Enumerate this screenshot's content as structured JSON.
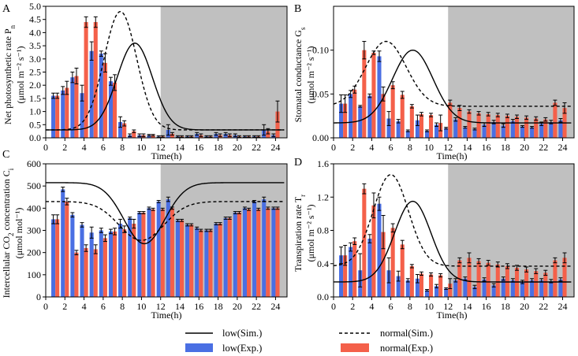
{
  "colors": {
    "low": "#4a6fe3",
    "normal": "#f4604a",
    "night": "#c0c0c0",
    "line": "#000000",
    "err": "#000000"
  },
  "x_ticks": [
    0,
    2,
    4,
    6,
    8,
    10,
    12,
    14,
    16,
    18,
    20,
    22,
    24
  ],
  "legend": {
    "low_sim": "low(Sim.)",
    "normal_sim": "normal(Sim.)",
    "low_exp": "low(Exp.)",
    "normal_exp": "normal(Exp.)"
  },
  "chart_data": [
    {
      "type": "bar",
      "panel_label": "A",
      "ylabel_line1": "Net photosynthetic rate P",
      "ylabel_sub": "n",
      "ylabel_line2": "(μmol m⁻² s⁻¹)",
      "xlabel": "Time(h)",
      "xlim": [
        0,
        25.2
      ],
      "ylim": [
        0,
        5.0
      ],
      "yticks": [
        0,
        0.5,
        1.0,
        1.5,
        2.0,
        2.5,
        3.0,
        3.5,
        4.0,
        4.5,
        5.0
      ],
      "ytick_labels": [
        "0.0",
        "0.5",
        "1.0",
        "1.5",
        "2.0",
        "2.5",
        "3.0",
        "3.5",
        "4.0",
        "4.5",
        "5.0"
      ],
      "night_start": 12,
      "x": [
        1,
        2,
        3,
        4,
        5,
        6,
        7,
        8,
        9,
        10,
        11,
        12,
        13,
        14,
        15,
        16,
        17,
        18,
        19,
        20,
        21,
        22,
        23,
        24
      ],
      "series": [
        {
          "name": "low(Exp.)",
          "values": [
            1.6,
            1.8,
            2.3,
            1.7,
            3.3,
            3.2,
            2.15,
            0.6,
            0.1,
            0.1,
            0.1,
            0.05,
            0.3,
            0.05,
            0.05,
            0.15,
            0.05,
            0.15,
            0.15,
            0.1,
            0.05,
            0.05,
            0.3,
            0.1
          ],
          "errors": [
            0.1,
            0.15,
            0.2,
            0.3,
            0.35,
            0.1,
            0.15,
            0.2,
            0.05,
            0.05,
            0.03,
            0.03,
            0.2,
            0.03,
            0.03,
            0.05,
            0.03,
            0.05,
            0.05,
            0.05,
            0.03,
            0.03,
            0.2,
            0.05
          ]
        },
        {
          "name": "normal(Exp.)",
          "values": [
            1.6,
            1.9,
            2.35,
            4.4,
            4.4,
            2.85,
            2.1,
            0.55,
            0.25,
            0.1,
            0.1,
            0.05,
            0.15,
            0.05,
            0.05,
            0.1,
            0.05,
            0.1,
            0.1,
            0.05,
            0.05,
            0.05,
            0.25,
            1.0
          ],
          "errors": [
            0.1,
            0.25,
            0.3,
            0.2,
            0.2,
            0.35,
            0.3,
            0.1,
            0.05,
            0.05,
            0.03,
            0.03,
            0.05,
            0.03,
            0.03,
            0.05,
            0.03,
            0.05,
            0.05,
            0.03,
            0.03,
            0.03,
            0.1,
            0.4
          ]
        }
      ],
      "sim": {
        "low": {
          "base": 0.3,
          "peak": 3.6,
          "center": 9.3,
          "width": 2.6
        },
        "normal": {
          "base": 0.3,
          "peak": 4.8,
          "center": 7.8,
          "width": 2.4
        }
      }
    },
    {
      "type": "bar",
      "panel_label": "B",
      "ylabel_line1": "Stomatal conductance G",
      "ylabel_sub": "s",
      "ylabel_line2": "(μmol m⁻² s⁻¹)",
      "xlabel": "Time(h)",
      "xlim": [
        0,
        25.2
      ],
      "ylim": [
        0,
        0.15
      ],
      "yticks": [
        0,
        0.05,
        0.1
      ],
      "ytick_labels": [
        "0.00",
        "0.05",
        "0.10"
      ],
      "night_start": 12,
      "x": [
        1,
        2,
        3,
        4,
        5,
        6,
        7,
        8,
        9,
        10,
        11,
        12,
        13,
        14,
        15,
        16,
        17,
        18,
        19,
        20,
        21,
        22,
        23,
        24
      ],
      "series": [
        {
          "name": "low(Exp.)",
          "values": [
            0.039,
            0.05,
            0.036,
            0.048,
            0.093,
            0.022,
            0.019,
            0.008,
            0.02,
            0.008,
            0.015,
            0.011,
            0.021,
            0.012,
            0.01,
            0.015,
            0.018,
            0.014,
            0.019,
            0.013,
            0.012,
            0.016,
            0.018,
            0.02
          ],
          "errors": [
            0.01,
            0.004,
            0.001,
            0.002,
            0.006,
            0.008,
            0.002,
            0.001,
            0.006,
            0.001,
            0.002,
            0.001,
            0.002,
            0.001,
            0.001,
            0.002,
            0.002,
            0.002,
            0.002,
            0.001,
            0.001,
            0.002,
            0.002,
            0.002
          ]
        },
        {
          "name": "normal(Exp.)",
          "values": [
            0.039,
            0.055,
            0.1,
            0.097,
            0.05,
            0.06,
            0.049,
            0.036,
            0.027,
            0.026,
            0.017,
            0.04,
            0.034,
            0.03,
            0.028,
            0.027,
            0.026,
            0.025,
            0.024,
            0.023,
            0.022,
            0.021,
            0.04,
            0.034
          ],
          "errors": [
            0.01,
            0.004,
            0.01,
            0.002,
            0.008,
            0.004,
            0.004,
            0.002,
            0.002,
            0.002,
            0.009,
            0.003,
            0.003,
            0.002,
            0.002,
            0.002,
            0.002,
            0.002,
            0.002,
            0.002,
            0.002,
            0.002,
            0.003,
            0.006
          ]
        }
      ],
      "sim": {
        "low": {
          "base": 0.017,
          "peak": 0.1,
          "center": 8.3,
          "width": 3.0
        },
        "normal": {
          "base": 0.036,
          "peak": 0.11,
          "center": 5.5,
          "width": 3.0
        }
      }
    },
    {
      "type": "bar",
      "panel_label": "C",
      "ylabel_line1": "Intercellular CO",
      "ylabel_sub": "2",
      "ylabel_mid": " concentration C",
      "ylabel_sub2": "i",
      "ylabel_line2": "(μmol mol⁻¹)",
      "xlabel": "Time(h)",
      "xlim": [
        0,
        25.2
      ],
      "ylim": [
        0,
        600
      ],
      "yticks": [
        0,
        100,
        200,
        300,
        400,
        500,
        600
      ],
      "ytick_labels": [
        "0",
        "100",
        "200",
        "300",
        "400",
        "500",
        "600"
      ],
      "night_start": 12,
      "x": [
        1,
        2,
        3,
        4,
        5,
        6,
        7,
        8,
        9,
        10,
        11,
        12,
        13,
        14,
        15,
        16,
        17,
        18,
        19,
        20,
        21,
        22,
        23,
        24
      ],
      "series": [
        {
          "name": "low(Exp.)",
          "values": [
            350,
            485,
            370,
            325,
            290,
            300,
            295,
            330,
            355,
            380,
            400,
            430,
            440,
            345,
            325,
            310,
            300,
            330,
            355,
            380,
            400,
            430,
            440,
            400
          ],
          "errors": [
            20,
            10,
            10,
            10,
            25,
            10,
            10,
            20,
            5,
            5,
            5,
            5,
            10,
            5,
            5,
            5,
            5,
            5,
            5,
            5,
            5,
            5,
            10,
            5
          ]
        },
        {
          "name": "normal(Exp.)",
          "values": [
            350,
            430,
            200,
            220,
            215,
            265,
            295,
            305,
            330,
            380,
            395,
            395,
            400,
            345,
            325,
            300,
            300,
            330,
            355,
            380,
            395,
            395,
            400,
            400
          ],
          "errors": [
            20,
            15,
            10,
            15,
            20,
            15,
            15,
            15,
            20,
            5,
            5,
            5,
            5,
            5,
            5,
            5,
            5,
            5,
            5,
            5,
            5,
            5,
            5,
            5
          ]
        }
      ],
      "sim": {
        "low": {
          "base": 515,
          "peak": 240,
          "center": 10.3,
          "width": 3.0
        },
        "normal": {
          "base": 430,
          "peak": 255,
          "center": 10.0,
          "width": 3.3
        }
      }
    },
    {
      "type": "bar",
      "panel_label": "D",
      "ylabel_line1": "Transpiration rate T",
      "ylabel_sub": "r",
      "ylabel_line2": "(μmol m⁻² s⁻¹)",
      "xlabel": "Time(h)",
      "xlim": [
        0,
        25.2
      ],
      "ylim": [
        0,
        1.6
      ],
      "yticks": [
        0,
        0.4,
        0.8,
        1.2,
        1.6
      ],
      "ytick_labels": [
        "0.0",
        "0.4",
        "0.8",
        "1.2",
        "1.6"
      ],
      "night_start": 12,
      "x": [
        1,
        2,
        3,
        4,
        5,
        6,
        7,
        8,
        9,
        10,
        11,
        12,
        13,
        14,
        15,
        16,
        17,
        18,
        19,
        20,
        21,
        22,
        23,
        24
      ],
      "series": [
        {
          "name": "low(Exp.)",
          "values": [
            0.5,
            0.6,
            0.32,
            0.7,
            1.12,
            0.32,
            0.25,
            0.2,
            0.22,
            0.08,
            0.13,
            0.1,
            0.2,
            0.22,
            0.12,
            0.21,
            0.14,
            0.22,
            0.2,
            0.18,
            0.2,
            0.2,
            0.19,
            0.21
          ],
          "errors": [
            0.1,
            0.05,
            0.2,
            0.05,
            0.08,
            0.15,
            0.06,
            0.02,
            0.05,
            0.01,
            0.02,
            0.01,
            0.02,
            0.02,
            0.02,
            0.02,
            0.02,
            0.02,
            0.02,
            0.02,
            0.02,
            0.02,
            0.02,
            0.02
          ]
        },
        {
          "name": "normal(Exp.)",
          "values": [
            0.5,
            0.67,
            1.3,
            1.1,
            0.78,
            0.83,
            0.63,
            0.37,
            0.28,
            0.27,
            0.26,
            0.16,
            0.44,
            0.47,
            0.43,
            0.41,
            0.39,
            0.37,
            0.35,
            0.33,
            0.31,
            0.29,
            0.44,
            0.47
          ],
          "errors": [
            0.12,
            0.04,
            0.06,
            0.15,
            0.2,
            0.05,
            0.05,
            0.02,
            0.02,
            0.02,
            0.02,
            0.06,
            0.03,
            0.06,
            0.03,
            0.03,
            0.03,
            0.03,
            0.03,
            0.03,
            0.03,
            0.03,
            0.03,
            0.06
          ]
        }
      ],
      "sim": {
        "low": {
          "base": 0.18,
          "peak": 1.15,
          "center": 8.3,
          "width": 2.7
        },
        "normal": {
          "base": 0.37,
          "peak": 1.47,
          "center": 6.0,
          "width": 2.6
        }
      }
    }
  ]
}
